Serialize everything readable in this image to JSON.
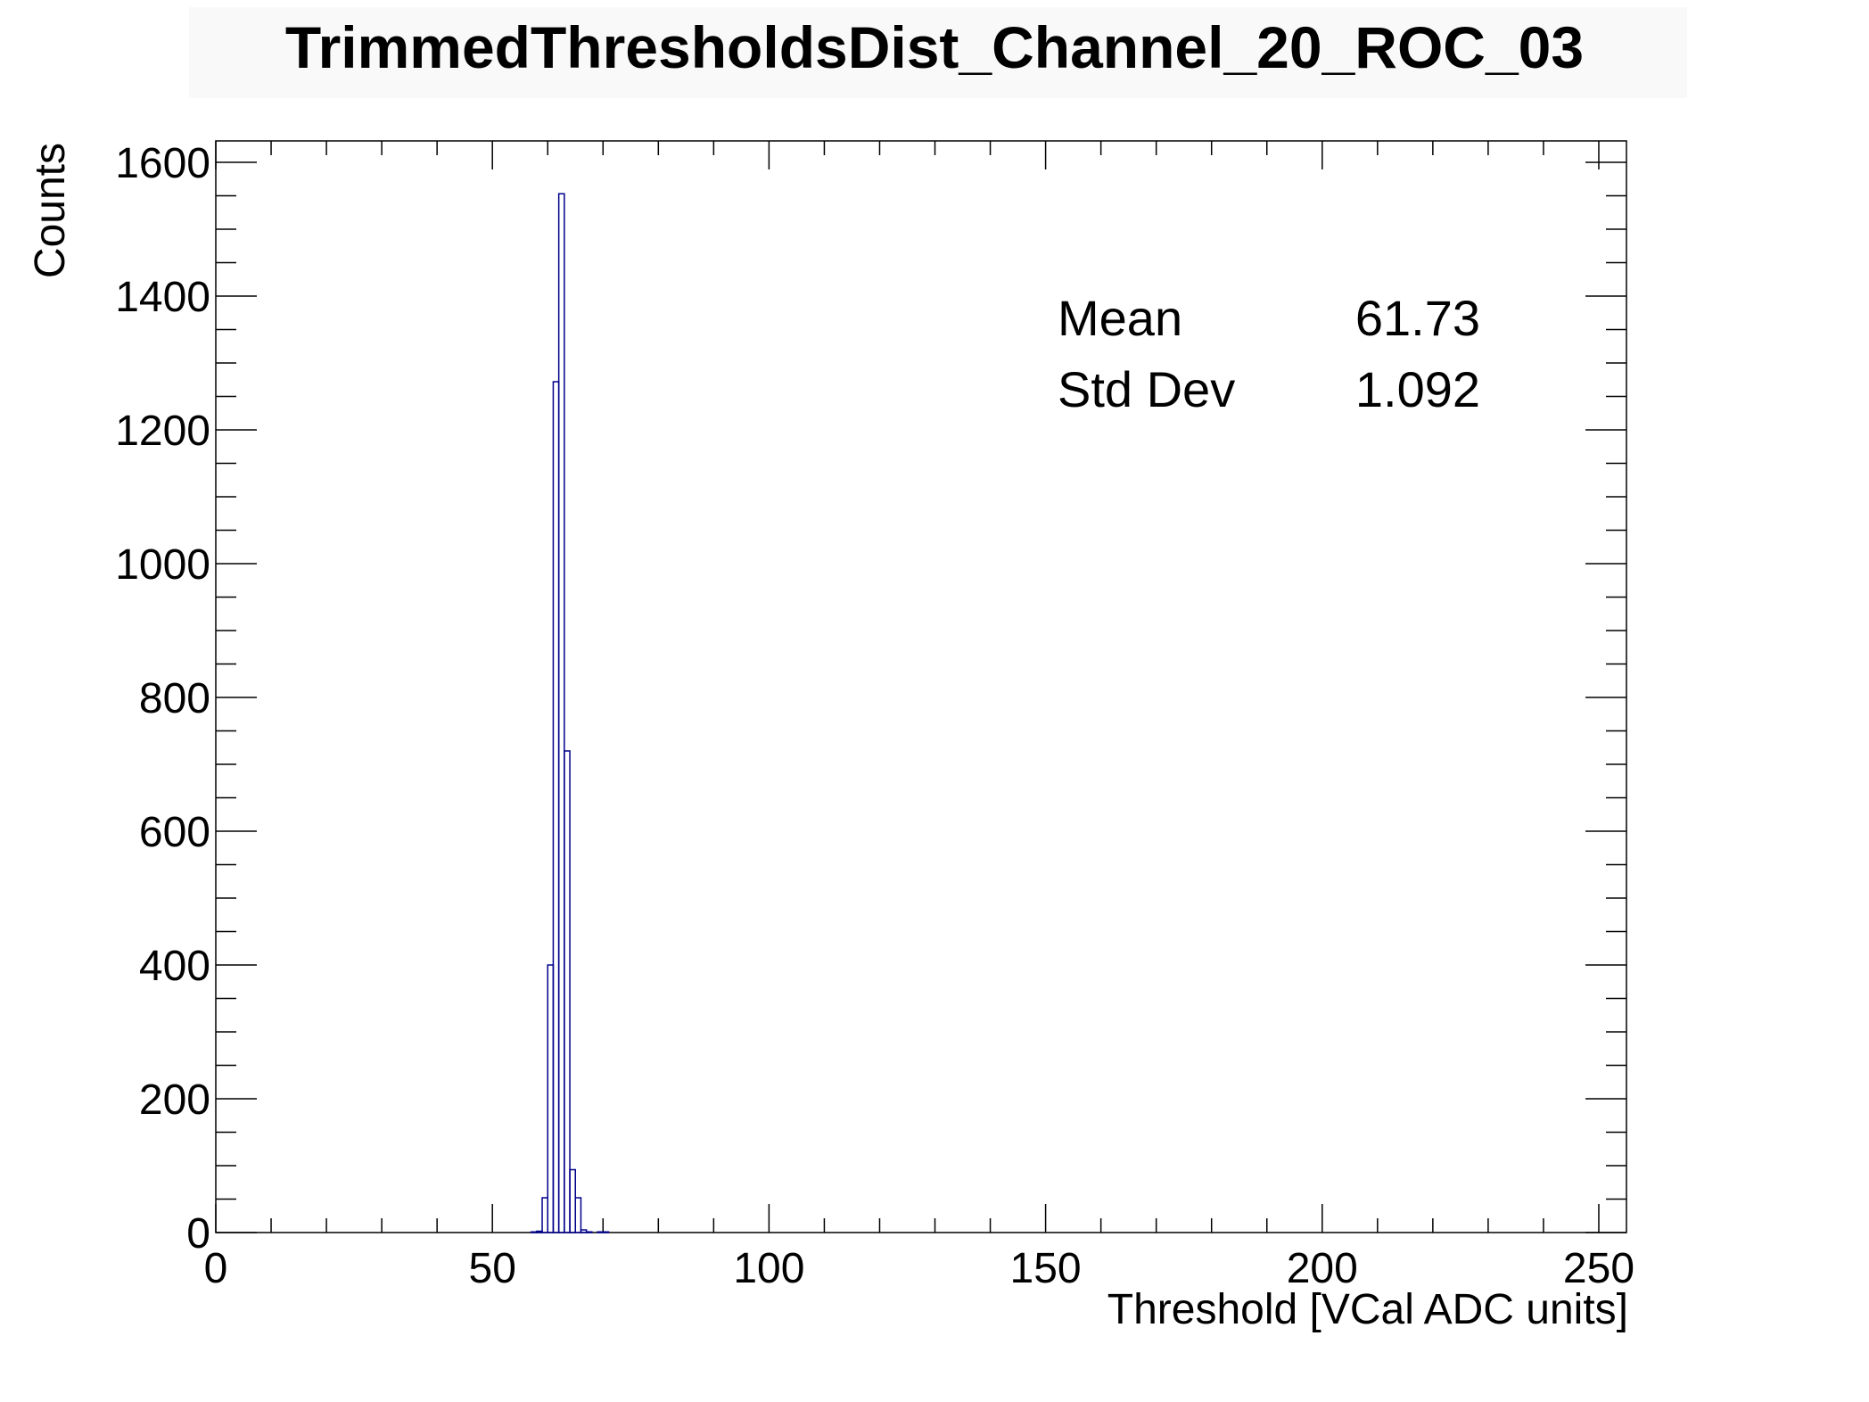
{
  "chart_data": {
    "type": "bar",
    "title": "TrimmedThresholdsDist_Channel_20_ROC_03",
    "xlabel": "Threshold [VCal ADC units]",
    "ylabel": "Counts",
    "xlim": [
      0,
      255
    ],
    "ylim": [
      0,
      1632
    ],
    "x_ticks": [
      0,
      50,
      100,
      150,
      200,
      250
    ],
    "y_ticks": [
      0,
      200,
      400,
      600,
      800,
      1000,
      1200,
      1400,
      1600
    ],
    "bin_width": 1,
    "grid": false,
    "legend": "none",
    "series": [
      {
        "color": "#00008b",
        "x": [
          57,
          58,
          59,
          60,
          61,
          62,
          63,
          64,
          65,
          66,
          67,
          68,
          69,
          70,
          71
        ],
        "values": [
          1,
          2,
          52,
          400,
          1272,
          1553,
          720,
          94,
          52,
          4,
          1,
          0,
          1,
          1,
          0
        ]
      }
    ],
    "stats": [
      {
        "label": "Mean",
        "value": "61.73"
      },
      {
        "label": "Std Dev",
        "value": "1.092"
      }
    ]
  }
}
